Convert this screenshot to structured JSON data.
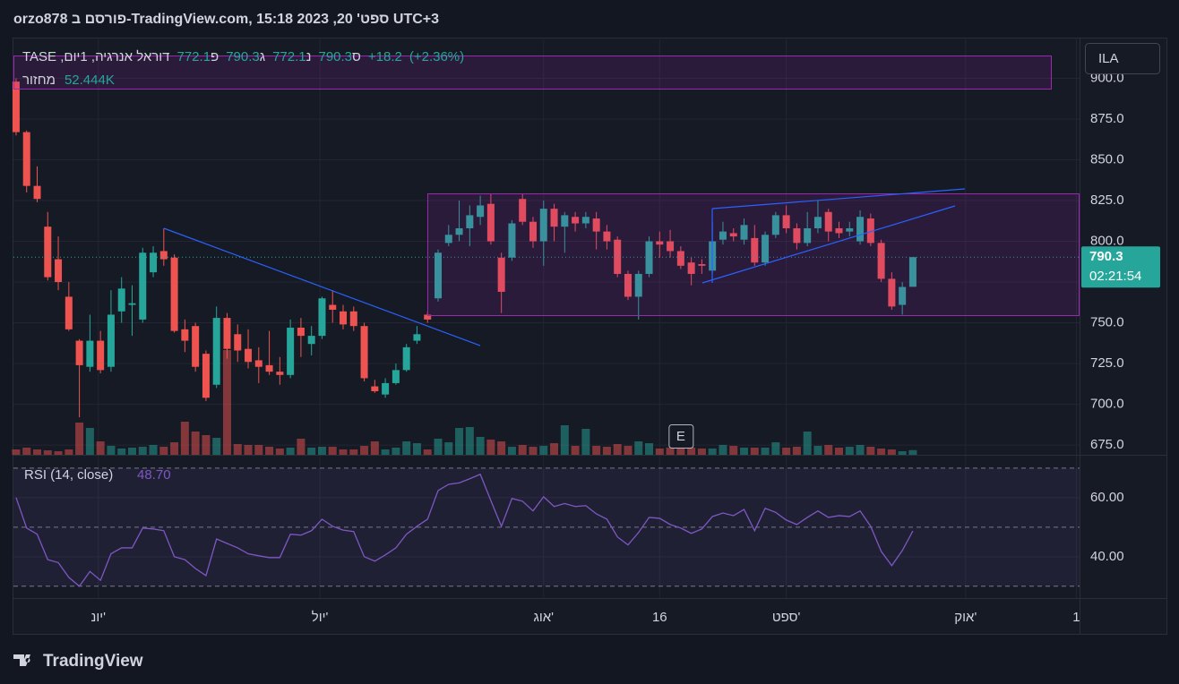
{
  "header": {
    "published": "orzo878 פורסם ב-TradingView.com, ספט' 20, 2023 15:18 UTC+3"
  },
  "currency": "ILA",
  "legend": {
    "symbol": "דוראל אנרגיה, 1יום, TASE",
    "open_label": "פ",
    "open": 772.1,
    "high_label": "ג",
    "high": 790.3,
    "low_label": "נ",
    "low": 772.1,
    "close_label": "ס",
    "close": 790.3,
    "change": {
      "value": 18.2,
      "label": "+18.2"
    },
    "change_pct": {
      "value": 2.36,
      "label": "(+2.36%)"
    },
    "volume_label": "מחזור",
    "volume": {
      "value": 52444,
      "label": "52.444K"
    }
  },
  "chart_data": [
    {
      "type": "candlestick",
      "open": [
        898,
        867,
        834,
        809,
        789,
        766,
        739,
        723,
        739,
        723,
        757,
        761,
        752,
        781,
        794,
        790,
        746,
        748,
        731,
        712,
        753,
        743,
        734,
        727,
        724,
        720,
        718,
        747,
        737,
        742,
        761,
        757,
        757,
        748,
        711,
        706,
        713,
        721,
        739,
        755,
        765,
        799,
        804,
        808,
        815,
        823,
        790,
        790,
        826,
        812,
        800,
        820,
        809,
        815,
        811,
        814,
        806,
        801,
        780,
        766,
        780,
        800,
        800,
        794,
        787,
        786,
        782,
        801,
        805,
        801,
        802,
        787,
        804,
        816,
        808,
        799,
        808,
        818,
        808,
        806,
        800,
        814,
        799,
        777,
        761,
        772.1
      ],
      "high": [
        900,
        868,
        846,
        818,
        803,
        775,
        740,
        755,
        745,
        770,
        778,
        773,
        796,
        797,
        808,
        792,
        752,
        750,
        733,
        760,
        756,
        749,
        746,
        735,
        745,
        729,
        752,
        753,
        748,
        766,
        770,
        761,
        760,
        750,
        715,
        716,
        725,
        737,
        748,
        757,
        795,
        810,
        825,
        822,
        828,
        829,
        793,
        813,
        829,
        815,
        825,
        823,
        818,
        818,
        818,
        818,
        810,
        803,
        782,
        782,
        803,
        806,
        807,
        797,
        790,
        789,
        812,
        812,
        808,
        814,
        810,
        806,
        818,
        822,
        811,
        818,
        825,
        820,
        812,
        812,
        819,
        817,
        801,
        781,
        775,
        790.3
      ],
      "low": [
        865,
        830,
        824,
        776,
        770,
        745,
        692,
        720,
        719,
        720,
        750,
        742,
        750,
        778,
        785,
        744,
        732,
        720,
        702,
        710,
        728,
        726,
        722,
        713,
        718,
        712,
        716,
        729,
        730,
        740,
        750,
        746,
        745,
        714,
        707,
        704,
        712,
        720,
        737,
        750,
        763,
        797,
        800,
        797,
        810,
        798,
        756,
        788,
        810,
        796,
        785,
        800,
        793,
        806,
        808,
        795,
        795,
        778,
        764,
        752,
        778,
        790,
        790,
        783,
        773,
        780,
        780,
        798,
        800,
        798,
        785,
        785,
        802,
        805,
        795,
        797,
        805,
        800,
        802,
        803,
        798,
        797,
        775,
        758,
        755,
        772.1
      ],
      "close": [
        867,
        834,
        826,
        778,
        775,
        746,
        724,
        739,
        721,
        755,
        771,
        762,
        793,
        793,
        789,
        745,
        739,
        723,
        704,
        753,
        734,
        733,
        726,
        723,
        720,
        718,
        747,
        742,
        742,
        765,
        758,
        749,
        748,
        716,
        708,
        713,
        721,
        735,
        743,
        752,
        793,
        804,
        808,
        816,
        822,
        800,
        769,
        811,
        812,
        800,
        820,
        809,
        816,
        811,
        815,
        806,
        800,
        780,
        766,
        780,
        800,
        798,
        794,
        785,
        780,
        785,
        800,
        806,
        803,
        810,
        787,
        804,
        816,
        808,
        799,
        808,
        815,
        806,
        805,
        808,
        815,
        799,
        777,
        760,
        772,
        790.3
      ],
      "up_color": "#26a69a",
      "down_color": "#ef5350",
      "volume": {
        "values": [
          60000,
          80000,
          60000,
          50000,
          40000,
          60000,
          360000,
          300000,
          150000,
          100000,
          70000,
          80000,
          90000,
          110000,
          90000,
          140000,
          370000,
          260000,
          220000,
          190000,
          1170000,
          120000,
          110000,
          110000,
          90000,
          70000,
          80000,
          180000,
          80000,
          90000,
          90000,
          60000,
          60000,
          100000,
          150000,
          60000,
          80000,
          150000,
          130000,
          60000,
          180000,
          140000,
          300000,
          310000,
          200000,
          170000,
          150000,
          90000,
          110000,
          90000,
          100000,
          130000,
          330000,
          100000,
          290000,
          100000,
          90000,
          120000,
          100000,
          150000,
          130000,
          70000,
          80000,
          90000,
          80000,
          70000,
          70000,
          110000,
          100000,
          80000,
          80000,
          80000,
          140000,
          80000,
          90000,
          260000,
          100000,
          110000,
          80000,
          90000,
          110000,
          90000,
          70000,
          60000,
          40000,
          52444
        ],
        "up_color": "#26a69a80",
        "down_color": "#ef535080"
      },
      "ylim": [
        669,
        925
      ],
      "yticks": [
        {
          "value": 675,
          "label": "675.0"
        },
        {
          "value": 700,
          "label": "700.0"
        },
        {
          "value": 725,
          "label": "725.0"
        },
        {
          "value": 750,
          "label": "750.0"
        },
        {
          "value": 775,
          "label": "775.0"
        },
        {
          "value": 800,
          "label": "800.0"
        },
        {
          "value": 825,
          "label": "825.0"
        },
        {
          "value": 850,
          "label": "850.0"
        },
        {
          "value": 875,
          "label": "875.0"
        },
        {
          "value": 900,
          "label": "900.0"
        }
      ],
      "xlim": [
        -0.25,
        100.8
      ],
      "xticks": [
        {
          "value": 7.8,
          "label": "יונ'"
        },
        {
          "value": 28.8,
          "label": "יול'"
        },
        {
          "value": 50.0,
          "label": "אוג'"
        },
        {
          "value": 61.0,
          "label": "16"
        },
        {
          "value": 73.0,
          "label": "ספט'"
        },
        {
          "value": 90.0,
          "label": "אוק'"
        },
        {
          "value": 100.5,
          "label": "1"
        }
      ],
      "grid": true,
      "last_price": 790.3,
      "countdown": "02:21:54",
      "events": [
        {
          "index": 63,
          "label": "E"
        }
      ]
    },
    {
      "type": "line",
      "name": "RSI (14, close)",
      "values": [
        60,
        49.7,
        47.6,
        39,
        38,
        33,
        30,
        35,
        32,
        41,
        43,
        43,
        49.7,
        49.4,
        48.8,
        40,
        39,
        36,
        33.6,
        46,
        44.5,
        43,
        41,
        40.3,
        39.7,
        39.7,
        47.6,
        47.3,
        48.8,
        52.7,
        50.3,
        49,
        48.5,
        40,
        38.5,
        40.6,
        43,
        47.6,
        50.3,
        52.7,
        62.4,
        64.5,
        65,
        66.4,
        67.9,
        59,
        50.3,
        59.7,
        58.8,
        55.5,
        60.3,
        57,
        58,
        57,
        57.3,
        54.5,
        52.7,
        46.7,
        44,
        48.2,
        53.3,
        53,
        50.9,
        49.7,
        47.9,
        49.4,
        53.6,
        54.8,
        53.9,
        56,
        48.8,
        56.4,
        55,
        52.4,
        50.9,
        53.3,
        55.5,
        53.3,
        53.9,
        53.6,
        55.5,
        50.3,
        41.8,
        37,
        42.1,
        48.7
      ],
      "value_label": "48.70",
      "color": "#7e57c2",
      "ylim": [
        26,
        74.5
      ],
      "yticks": [
        {
          "value": 40,
          "label": "40.00"
        },
        {
          "value": 60,
          "label": "60.00"
        }
      ],
      "levels": [
        30,
        50,
        70
      ]
    }
  ],
  "footer": {
    "brand": "TradingView"
  }
}
